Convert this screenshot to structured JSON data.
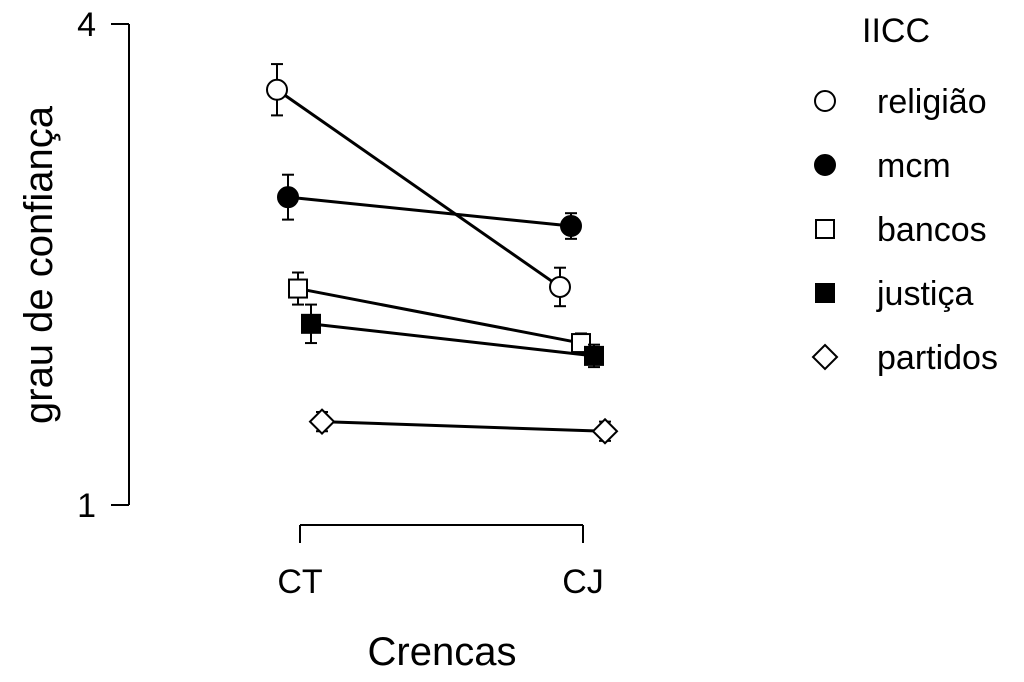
{
  "chart_data": {
    "type": "line",
    "xlabel": "Crencas",
    "ylabel": "grau de confiança",
    "categories": [
      "CT",
      "CJ"
    ],
    "y_ticks": [
      "4",
      "1"
    ],
    "ylim": [
      1,
      4
    ],
    "legend_title": "IICC",
    "legend_position": "right",
    "grid": false,
    "series": [
      {
        "name": "religião",
        "marker": "circle-open",
        "values": [
          3.59,
          2.36
        ],
        "errors": [
          0.16,
          0.12
        ]
      },
      {
        "name": "mcm",
        "marker": "circle-filled",
        "values": [
          2.92,
          2.74
        ],
        "errors": [
          0.14,
          0.08
        ]
      },
      {
        "name": "bancos",
        "marker": "square-open",
        "values": [
          2.35,
          2.01
        ],
        "errors": [
          0.1,
          0.06
        ]
      },
      {
        "name": "justiça",
        "marker": "square-filled",
        "values": [
          2.13,
          1.93
        ],
        "errors": [
          0.12,
          0.07
        ]
      },
      {
        "name": "partidos",
        "marker": "diamond-open",
        "values": [
          1.52,
          1.46
        ],
        "errors": [
          0.06,
          0.06
        ]
      }
    ]
  }
}
